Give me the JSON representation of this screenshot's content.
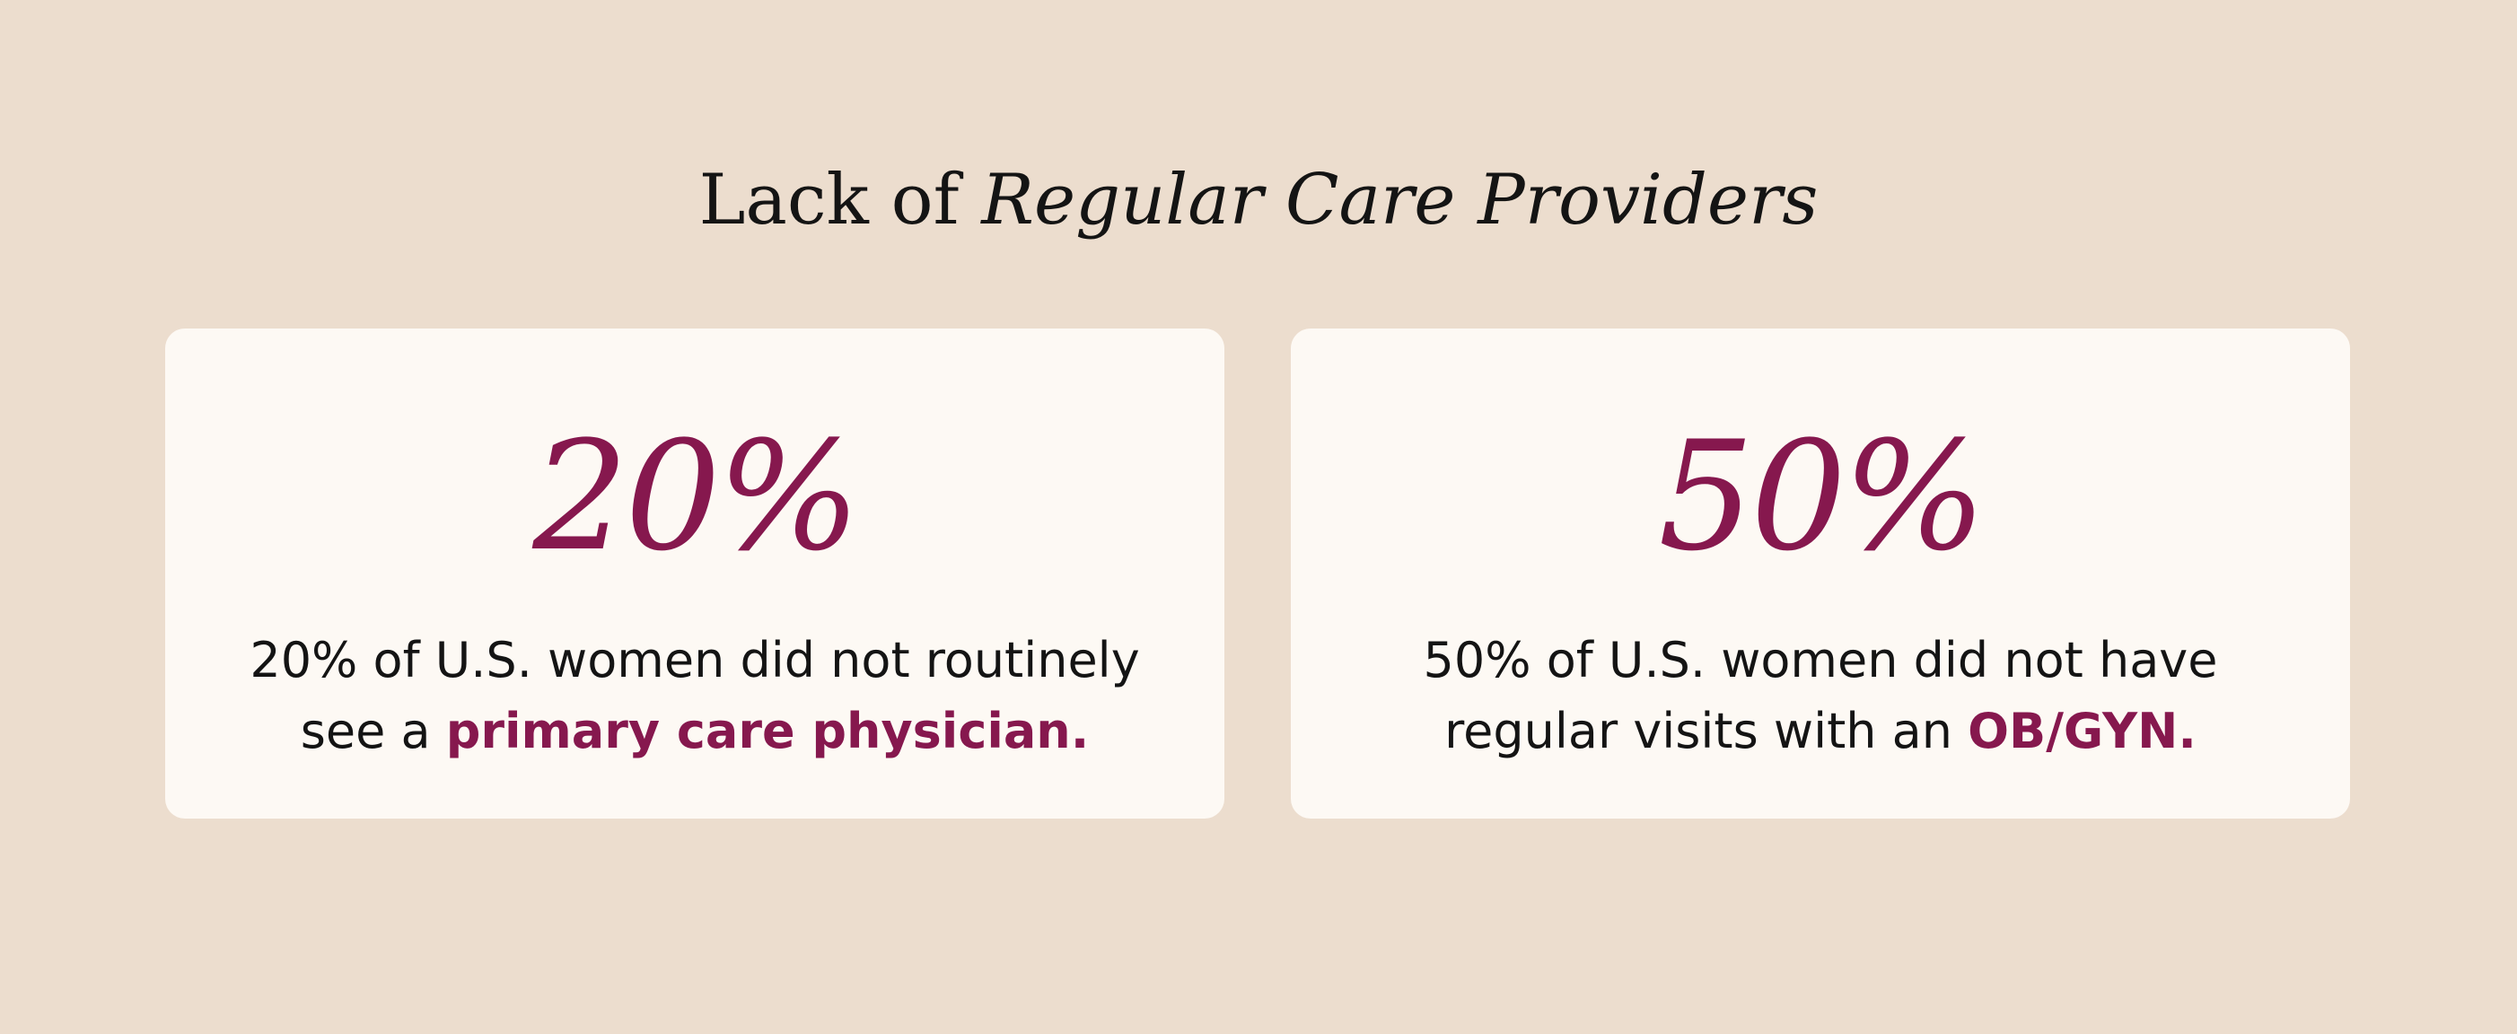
{
  "title": {
    "prefix": "Lack of ",
    "emphasis": "Regular Care Providers"
  },
  "cards": [
    {
      "stat": "20%",
      "line1": "20% of U.S. women did not routinely",
      "line2_prefix": "see a ",
      "line2_highlight": "primary care physician."
    },
    {
      "stat": "50%",
      "line1": "50% of U.S. women did not have",
      "line2_prefix": "regular visits with an ",
      "line2_highlight": "OB/GYN."
    }
  ],
  "colors": {
    "background": "#ecddce",
    "card": "#fdf9f4",
    "accent": "#86184e",
    "text": "#141414"
  }
}
